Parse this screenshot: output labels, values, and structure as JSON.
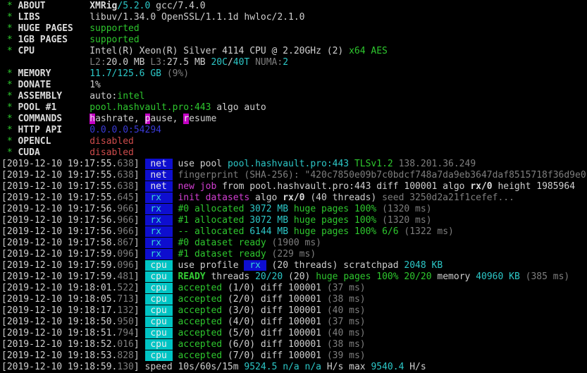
{
  "app": {
    "name": "XMRig miner terminal output",
    "version": "XMRig/5.2.0"
  },
  "palette": {
    "background": "#000000",
    "foreground": "#cfcfcf",
    "green": "#2ec72e",
    "cyan": "#2cc7c7",
    "magenta": "#d23ed2",
    "dim_gray": "#7e7e7e",
    "red": "#cd4b4b",
    "blue": "#3a3ad6",
    "badge_blue_bg": "#0e0ecf",
    "badge_cyan_bg": "#00c4c4",
    "hotkey_magenta_bg": "#c400c4"
  },
  "lines": [
    {
      "name": "about-row",
      "segments": [
        {
          "s": "g",
          "t": " * ",
          "n": "bullet"
        },
        {
          "s": "wb",
          "t": "ABOUT        ",
          "n": "field-label"
        },
        {
          "s": "wb",
          "t": "XMRig"
        },
        {
          "s": "c",
          "t": "/5.2.0"
        },
        {
          "s": "w",
          "t": " gcc/7.4.0"
        }
      ]
    },
    {
      "name": "libs-row",
      "segments": [
        {
          "s": "g",
          "t": " * ",
          "n": "bullet"
        },
        {
          "s": "wb",
          "t": "LIBS         ",
          "n": "field-label"
        },
        {
          "s": "w",
          "t": "libuv/1.34.0 OpenSSL/1.1.1d hwloc/2.1.0"
        }
      ]
    },
    {
      "name": "huge-pages-row",
      "segments": [
        {
          "s": "g",
          "t": " * ",
          "n": "bullet"
        },
        {
          "s": "wb",
          "t": "HUGE PAGES   ",
          "n": "field-label"
        },
        {
          "s": "g",
          "t": "supported"
        }
      ]
    },
    {
      "name": "1gb-pages-row",
      "segments": [
        {
          "s": "g",
          "t": " * ",
          "n": "bullet"
        },
        {
          "s": "wb",
          "t": "1GB PAGES    ",
          "n": "field-label"
        },
        {
          "s": "g",
          "t": "supported"
        }
      ]
    },
    {
      "name": "cpu-row",
      "segments": [
        {
          "s": "g",
          "t": " * ",
          "n": "bullet"
        },
        {
          "s": "wb",
          "t": "CPU          ",
          "n": "field-label"
        },
        {
          "s": "w",
          "t": "Intel(R) Xeon(R) Silver 4114 CPU @ 2.20GHz (2) "
        },
        {
          "s": "g",
          "t": "x64 AES"
        }
      ]
    },
    {
      "name": "cpu-cache-row",
      "segments": [
        {
          "s": "w",
          "t": "                "
        },
        {
          "s": "d",
          "t": "L2:"
        },
        {
          "s": "w",
          "t": "20.0 MB "
        },
        {
          "s": "d",
          "t": "L3:"
        },
        {
          "s": "w",
          "t": "27.5 MB "
        },
        {
          "s": "c",
          "t": "20C"
        },
        {
          "s": "w",
          "t": "/"
        },
        {
          "s": "c",
          "t": "40T"
        },
        {
          "s": "d",
          "t": " NUMA:"
        },
        {
          "s": "c",
          "t": "2"
        }
      ]
    },
    {
      "name": "memory-row",
      "segments": [
        {
          "s": "g",
          "t": " * ",
          "n": "bullet"
        },
        {
          "s": "wb",
          "t": "MEMORY       ",
          "n": "field-label"
        },
        {
          "s": "c",
          "t": "11.7/125.6 GB "
        },
        {
          "s": "d",
          "t": "(9%)"
        }
      ]
    },
    {
      "name": "donate-row",
      "segments": [
        {
          "s": "g",
          "t": " * ",
          "n": "bullet"
        },
        {
          "s": "wb",
          "t": "DONATE       ",
          "n": "field-label"
        },
        {
          "s": "w",
          "t": "1%"
        }
      ]
    },
    {
      "name": "assembly-row",
      "segments": [
        {
          "s": "g",
          "t": " * ",
          "n": "bullet"
        },
        {
          "s": "wb",
          "t": "ASSEMBLY     ",
          "n": "field-label"
        },
        {
          "s": "w",
          "t": "auto:"
        },
        {
          "s": "g",
          "t": "intel"
        }
      ]
    },
    {
      "name": "pool-row",
      "segments": [
        {
          "s": "g",
          "t": " * ",
          "n": "bullet"
        },
        {
          "s": "wb",
          "t": "POOL #1      ",
          "n": "field-label"
        },
        {
          "s": "g",
          "t": "pool.hashvault.pro:443"
        },
        {
          "s": "w",
          "t": " algo auto"
        }
      ]
    },
    {
      "name": "commands-row",
      "segments": [
        {
          "s": "g",
          "t": " * ",
          "n": "bullet"
        },
        {
          "s": "wb",
          "t": "COMMANDS     ",
          "n": "field-label"
        },
        {
          "s": "hk",
          "t": "h",
          "n": "hotkey-h"
        },
        {
          "s": "w",
          "t": "ashrate, "
        },
        {
          "s": "hk",
          "t": "p",
          "n": "hotkey-p"
        },
        {
          "s": "w",
          "t": "ause, "
        },
        {
          "s": "hk",
          "t": "r",
          "n": "hotkey-r"
        },
        {
          "s": "w",
          "t": "esume"
        }
      ]
    },
    {
      "name": "http-api-row",
      "segments": [
        {
          "s": "g",
          "t": " * ",
          "n": "bullet"
        },
        {
          "s": "wb",
          "t": "HTTP API     ",
          "n": "field-label"
        },
        {
          "s": "b",
          "t": "0.0.0.0:54294"
        }
      ]
    },
    {
      "name": "opencl-row",
      "segments": [
        {
          "s": "g",
          "t": " * ",
          "n": "bullet"
        },
        {
          "s": "wb",
          "t": "OPENCL       ",
          "n": "field-label"
        },
        {
          "s": "r",
          "t": "disabled"
        }
      ]
    },
    {
      "name": "cuda-row",
      "segments": [
        {
          "s": "g",
          "t": " * ",
          "n": "bullet"
        },
        {
          "s": "wb",
          "t": "CUDA         ",
          "n": "field-label"
        },
        {
          "s": "r",
          "t": "disabled"
        }
      ]
    },
    {
      "name": "log-row",
      "segments": [
        {
          "s": "w",
          "t": "[2019-12-10 19:17:55.",
          "n": "timestamp"
        },
        {
          "s": "d",
          "t": "638",
          "n": "timestamp-ms"
        },
        {
          "s": "w",
          "t": "] "
        },
        {
          "s": "bn",
          "t": " net ",
          "n": "net-tag"
        },
        {
          "s": "w",
          "t": " use pool "
        },
        {
          "s": "c",
          "t": "pool.hashvault.pro:443"
        },
        {
          "s": "g",
          "t": " TLSv1.2"
        },
        {
          "s": "d",
          "t": " 138.201.36.249"
        }
      ]
    },
    {
      "name": "log-row",
      "segments": [
        {
          "s": "w",
          "t": "[2019-12-10 19:17:55.",
          "n": "timestamp"
        },
        {
          "s": "d",
          "t": "638",
          "n": "timestamp-ms"
        },
        {
          "s": "w",
          "t": "] "
        },
        {
          "s": "bn",
          "t": " net ",
          "n": "net-tag"
        },
        {
          "s": "d",
          "t": " fingerprint (SHA-256): \"420c7850e09b7c0bdcf748a7da9eb3647daf8515718f36d9e0"
        }
      ]
    },
    {
      "name": "log-row",
      "segments": [
        {
          "s": "w",
          "t": "[2019-12-10 19:17:55.",
          "n": "timestamp"
        },
        {
          "s": "d",
          "t": "638",
          "n": "timestamp-ms"
        },
        {
          "s": "w",
          "t": "] "
        },
        {
          "s": "bn",
          "t": " net ",
          "n": "net-tag"
        },
        {
          "s": "m",
          "t": " new job"
        },
        {
          "s": "w",
          "t": " from pool.hashvault.pro:443 diff 100001 algo "
        },
        {
          "s": "wb",
          "t": "rx/0"
        },
        {
          "s": "w",
          "t": " height 1985964"
        }
      ]
    },
    {
      "name": "log-row",
      "segments": [
        {
          "s": "w",
          "t": "[2019-12-10 19:17:55.",
          "n": "timestamp"
        },
        {
          "s": "d",
          "t": "645",
          "n": "timestamp-ms"
        },
        {
          "s": "w",
          "t": "] "
        },
        {
          "s": "brx",
          "t": " rx  ",
          "n": "rx-tag"
        },
        {
          "s": "m",
          "t": " init datasets"
        },
        {
          "s": "w",
          "t": " algo "
        },
        {
          "s": "wb",
          "t": "rx/0"
        },
        {
          "s": "w",
          "t": " (40 threads)"
        },
        {
          "s": "d",
          "t": " seed 3250d2a21f1cefef..."
        }
      ]
    },
    {
      "name": "log-row",
      "segments": [
        {
          "s": "w",
          "t": "[2019-12-10 19:17:56.",
          "n": "timestamp"
        },
        {
          "s": "d",
          "t": "966",
          "n": "timestamp-ms"
        },
        {
          "s": "w",
          "t": "] "
        },
        {
          "s": "brx",
          "t": " rx  ",
          "n": "rx-tag"
        },
        {
          "s": "g",
          "t": " #0 allocated "
        },
        {
          "s": "c",
          "t": "3072 MB "
        },
        {
          "s": "g",
          "t": "huge pages 100% "
        },
        {
          "s": "d",
          "t": "(1320 ms)"
        }
      ]
    },
    {
      "name": "log-row",
      "segments": [
        {
          "s": "w",
          "t": "[2019-12-10 19:17:56.",
          "n": "timestamp"
        },
        {
          "s": "d",
          "t": "966",
          "n": "timestamp-ms"
        },
        {
          "s": "w",
          "t": "] "
        },
        {
          "s": "brx",
          "t": " rx  ",
          "n": "rx-tag"
        },
        {
          "s": "g",
          "t": " #1 allocated "
        },
        {
          "s": "c",
          "t": "3072 MB "
        },
        {
          "s": "g",
          "t": "huge pages 100% "
        },
        {
          "s": "d",
          "t": "(1320 ms)"
        }
      ]
    },
    {
      "name": "log-row",
      "segments": [
        {
          "s": "w",
          "t": "[2019-12-10 19:17:56.",
          "n": "timestamp"
        },
        {
          "s": "d",
          "t": "966",
          "n": "timestamp-ms"
        },
        {
          "s": "w",
          "t": "] "
        },
        {
          "s": "brx",
          "t": " rx  ",
          "n": "rx-tag"
        },
        {
          "s": "g",
          "t": " -- allocated "
        },
        {
          "s": "c",
          "t": "6144 MB "
        },
        {
          "s": "g",
          "t": "huge pages 100% 6/6 "
        },
        {
          "s": "d",
          "t": "(1322 ms)"
        }
      ]
    },
    {
      "name": "log-row",
      "segments": [
        {
          "s": "w",
          "t": "[2019-12-10 19:17:58.",
          "n": "timestamp"
        },
        {
          "s": "d",
          "t": "867",
          "n": "timestamp-ms"
        },
        {
          "s": "w",
          "t": "] "
        },
        {
          "s": "brx",
          "t": " rx  ",
          "n": "rx-tag"
        },
        {
          "s": "g",
          "t": " #0 dataset ready "
        },
        {
          "s": "d",
          "t": "(1900 ms)"
        }
      ]
    },
    {
      "name": "log-row",
      "segments": [
        {
          "s": "w",
          "t": "[2019-12-10 19:17:59.",
          "n": "timestamp"
        },
        {
          "s": "d",
          "t": "096",
          "n": "timestamp-ms"
        },
        {
          "s": "w",
          "t": "] "
        },
        {
          "s": "brx",
          "t": " rx  ",
          "n": "rx-tag"
        },
        {
          "s": "g",
          "t": " #1 dataset ready "
        },
        {
          "s": "d",
          "t": "(229 ms)"
        }
      ]
    },
    {
      "name": "log-row",
      "segments": [
        {
          "s": "w",
          "t": "[2019-12-10 19:17:59.",
          "n": "timestamp"
        },
        {
          "s": "d",
          "t": "096",
          "n": "timestamp-ms"
        },
        {
          "s": "w",
          "t": "] "
        },
        {
          "s": "bc",
          "t": " cpu ",
          "n": "cpu-tag"
        },
        {
          "s": "w",
          "t": " use profile "
        },
        {
          "s": "brx",
          "t": " rx ",
          "n": "rx-profile-tag"
        },
        {
          "s": "w",
          "t": " (20 threads) scratchpad "
        },
        {
          "s": "c",
          "t": "2048 KB"
        }
      ]
    },
    {
      "name": "log-row",
      "segments": [
        {
          "s": "w",
          "t": "[2019-12-10 19:17:59.",
          "n": "timestamp"
        },
        {
          "s": "d",
          "t": "481",
          "n": "timestamp-ms"
        },
        {
          "s": "w",
          "t": "] "
        },
        {
          "s": "bc",
          "t": " cpu ",
          "n": "cpu-tag"
        },
        {
          "s": "gb",
          "t": " READY"
        },
        {
          "s": "w",
          "t": " threads "
        },
        {
          "s": "c",
          "t": "20/20"
        },
        {
          "s": "w",
          "t": " (20) "
        },
        {
          "s": "g",
          "t": "huge pages 100% 20/20"
        },
        {
          "s": "w",
          "t": " memory "
        },
        {
          "s": "c",
          "t": "40960 KB"
        },
        {
          "s": "d",
          "t": " (385 ms)"
        }
      ]
    },
    {
      "name": "log-row",
      "segments": [
        {
          "s": "w",
          "t": "[2019-12-10 19:18:01.",
          "n": "timestamp"
        },
        {
          "s": "d",
          "t": "522",
          "n": "timestamp-ms"
        },
        {
          "s": "w",
          "t": "] "
        },
        {
          "s": "bc",
          "t": " cpu ",
          "n": "cpu-tag"
        },
        {
          "s": "g",
          "t": " accepted "
        },
        {
          "s": "w",
          "t": "(1/0) diff 100001 "
        },
        {
          "s": "d",
          "t": "(37 ms)"
        }
      ]
    },
    {
      "name": "log-row",
      "segments": [
        {
          "s": "w",
          "t": "[2019-12-10 19:18:05.",
          "n": "timestamp"
        },
        {
          "s": "d",
          "t": "713",
          "n": "timestamp-ms"
        },
        {
          "s": "w",
          "t": "] "
        },
        {
          "s": "bc",
          "t": " cpu ",
          "n": "cpu-tag"
        },
        {
          "s": "g",
          "t": " accepted "
        },
        {
          "s": "w",
          "t": "(2/0) diff 100001 "
        },
        {
          "s": "d",
          "t": "(38 ms)"
        }
      ]
    },
    {
      "name": "log-row",
      "segments": [
        {
          "s": "w",
          "t": "[2019-12-10 19:18:17.",
          "n": "timestamp"
        },
        {
          "s": "d",
          "t": "132",
          "n": "timestamp-ms"
        },
        {
          "s": "w",
          "t": "] "
        },
        {
          "s": "bc",
          "t": " cpu ",
          "n": "cpu-tag"
        },
        {
          "s": "g",
          "t": " accepted "
        },
        {
          "s": "w",
          "t": "(3/0) diff 100001 "
        },
        {
          "s": "d",
          "t": "(40 ms)"
        }
      ]
    },
    {
      "name": "log-row",
      "segments": [
        {
          "s": "w",
          "t": "[2019-12-10 19:18:50.",
          "n": "timestamp"
        },
        {
          "s": "d",
          "t": "950",
          "n": "timestamp-ms"
        },
        {
          "s": "w",
          "t": "] "
        },
        {
          "s": "bc",
          "t": " cpu ",
          "n": "cpu-tag"
        },
        {
          "s": "g",
          "t": " accepted "
        },
        {
          "s": "w",
          "t": "(4/0) diff 100001 "
        },
        {
          "s": "d",
          "t": "(37 ms)"
        }
      ]
    },
    {
      "name": "log-row",
      "segments": [
        {
          "s": "w",
          "t": "[2019-12-10 19:18:51.",
          "n": "timestamp"
        },
        {
          "s": "d",
          "t": "794",
          "n": "timestamp-ms"
        },
        {
          "s": "w",
          "t": "] "
        },
        {
          "s": "bc",
          "t": " cpu ",
          "n": "cpu-tag"
        },
        {
          "s": "g",
          "t": " accepted "
        },
        {
          "s": "w",
          "t": "(5/0) diff 100001 "
        },
        {
          "s": "d",
          "t": "(40 ms)"
        }
      ]
    },
    {
      "name": "log-row",
      "segments": [
        {
          "s": "w",
          "t": "[2019-12-10 19:18:52.",
          "n": "timestamp"
        },
        {
          "s": "d",
          "t": "016",
          "n": "timestamp-ms"
        },
        {
          "s": "w",
          "t": "] "
        },
        {
          "s": "bc",
          "t": " cpu ",
          "n": "cpu-tag"
        },
        {
          "s": "g",
          "t": " accepted "
        },
        {
          "s": "w",
          "t": "(6/0) diff 100001 "
        },
        {
          "s": "d",
          "t": "(38 ms)"
        }
      ]
    },
    {
      "name": "log-row",
      "segments": [
        {
          "s": "w",
          "t": "[2019-12-10 19:18:53.",
          "n": "timestamp"
        },
        {
          "s": "d",
          "t": "828",
          "n": "timestamp-ms"
        },
        {
          "s": "w",
          "t": "] "
        },
        {
          "s": "bc",
          "t": " cpu ",
          "n": "cpu-tag"
        },
        {
          "s": "g",
          "t": " accepted "
        },
        {
          "s": "w",
          "t": "(7/0) diff 100001 "
        },
        {
          "s": "d",
          "t": "(39 ms)"
        }
      ]
    },
    {
      "name": "speed-row",
      "segments": [
        {
          "s": "w",
          "t": "[2019-12-10 19:18:59.",
          "n": "timestamp"
        },
        {
          "s": "d",
          "t": "130",
          "n": "timestamp-ms"
        },
        {
          "s": "w",
          "t": "] speed 10s/60s/15m "
        },
        {
          "s": "c",
          "t": "9524.5 n/a n/a "
        },
        {
          "s": "w",
          "t": "H/s max "
        },
        {
          "s": "c",
          "t": "9540.4 "
        },
        {
          "s": "w",
          "t": "H/s"
        }
      ]
    }
  ]
}
